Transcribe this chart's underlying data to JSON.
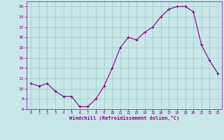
{
  "x": [
    0,
    1,
    2,
    3,
    4,
    5,
    6,
    7,
    8,
    9,
    10,
    11,
    12,
    13,
    14,
    15,
    16,
    17,
    18,
    19,
    20,
    21,
    22,
    23
  ],
  "y": [
    11,
    10.5,
    11,
    9.5,
    8.5,
    8.5,
    6.5,
    6.5,
    8,
    10.5,
    14,
    18,
    20,
    19.5,
    21,
    22,
    24,
    25.5,
    26,
    26,
    25,
    18.5,
    15.5,
    13
  ],
  "line_color": "#800080",
  "marker": "+",
  "bg_color": "#c8e8e8",
  "grid_color": "#b0d0d0",
  "xlabel": "Windchill (Refroidissement éolien,°C)",
  "xlabel_color": "#800080",
  "tick_color": "#800080",
  "ylim": [
    6,
    27
  ],
  "xlim": [
    -0.5,
    23.5
  ],
  "yticks": [
    6,
    8,
    10,
    12,
    14,
    16,
    18,
    20,
    22,
    24,
    26
  ],
  "xticks": [
    0,
    1,
    2,
    3,
    4,
    5,
    6,
    7,
    8,
    9,
    10,
    11,
    12,
    13,
    14,
    15,
    16,
    17,
    18,
    19,
    20,
    21,
    22,
    23
  ]
}
